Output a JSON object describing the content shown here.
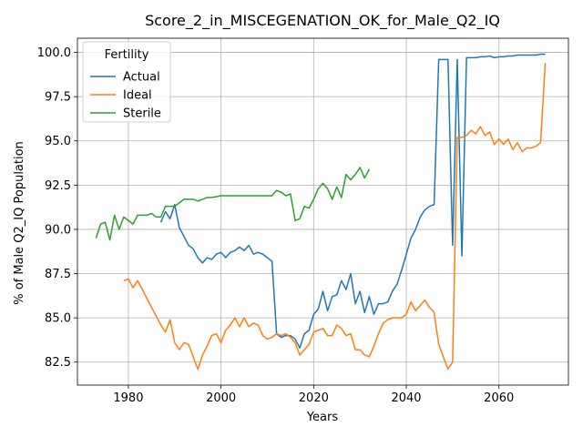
{
  "chart_data": {
    "type": "line",
    "title": "Score_2_in_MISCEGENATION_OK_for_Male_Q2_IQ",
    "xlabel": "Years",
    "ylabel": "% of Male Q2_IQ Population",
    "xlim": [
      1969,
      2075
    ],
    "ylim": [
      81.2,
      100.8
    ],
    "xticks": [
      1980,
      2000,
      2020,
      2040,
      2060
    ],
    "yticks": [
      82.5,
      85.0,
      87.5,
      90.0,
      92.5,
      95.0,
      97.5,
      100.0
    ],
    "xtick_labels": [
      "1980",
      "2000",
      "2020",
      "2040",
      "2060"
    ],
    "ytick_labels": [
      "82.5",
      "85.0",
      "87.5",
      "90.0",
      "92.5",
      "95.0",
      "97.5",
      "100.0"
    ],
    "grid": true,
    "legend": {
      "title": "Fertility",
      "placement": "top-left"
    },
    "series": [
      {
        "name": "Actual",
        "color": "#1f77b4",
        "x": [
          1987,
          1988,
          1989,
          1990,
          1991,
          1992,
          1993,
          1994,
          1995,
          1996,
          1997,
          1998,
          1999,
          2000,
          2001,
          2002,
          2003,
          2004,
          2005,
          2006,
          2007,
          2008,
          2009,
          2010,
          2011,
          2012,
          2013,
          2014,
          2015,
          2016,
          2017,
          2018,
          2019,
          2020,
          2021,
          2022,
          2023,
          2024,
          2025,
          2026,
          2027,
          2028,
          2029,
          2030,
          2031,
          2032,
          2033,
          2034,
          2035,
          2036,
          2037,
          2038,
          2039,
          2040,
          2041,
          2042,
          2043,
          2044,
          2045,
          2046,
          2047,
          2048,
          2049,
          2050,
          2051,
          2052,
          2053,
          2054,
          2055,
          2056,
          2057,
          2058,
          2059,
          2060,
          2061,
          2062,
          2063,
          2064,
          2065,
          2066,
          2067,
          2068,
          2069,
          2070
        ],
        "values": [
          90.4,
          91.0,
          90.6,
          91.4,
          90.1,
          89.6,
          89.1,
          88.9,
          88.4,
          88.1,
          88.4,
          88.3,
          88.6,
          88.7,
          88.4,
          88.7,
          88.8,
          89.0,
          88.8,
          89.1,
          88.6,
          88.7,
          88.6,
          88.4,
          88.2,
          84.1,
          83.9,
          84.0,
          84.0,
          83.8,
          83.3,
          84.1,
          84.3,
          85.2,
          85.5,
          86.5,
          85.4,
          86.2,
          86.3,
          87.1,
          86.6,
          87.5,
          85.8,
          86.5,
          85.3,
          86.2,
          85.2,
          85.8,
          85.8,
          85.9,
          86.5,
          86.9,
          87.7,
          88.6,
          89.5,
          90.0,
          90.7,
          91.1,
          91.3,
          91.4,
          99.6,
          99.6,
          99.6,
          89.1,
          99.6,
          88.5,
          99.7,
          99.7,
          99.7,
          99.75,
          99.75,
          99.8,
          99.7,
          99.75,
          99.75,
          99.8,
          99.8,
          99.85,
          99.85,
          99.85,
          99.85,
          99.85,
          99.9,
          99.9
        ]
      },
      {
        "name": "Ideal",
        "color": "#ff7f0e",
        "x": [
          1979,
          1980,
          1981,
          1982,
          1983,
          1984,
          1985,
          1986,
          1987,
          1988,
          1989,
          1990,
          1991,
          1992,
          1993,
          1994,
          1995,
          1996,
          1997,
          1998,
          1999,
          2000,
          2001,
          2002,
          2003,
          2004,
          2005,
          2006,
          2007,
          2008,
          2009,
          2010,
          2011,
          2012,
          2013,
          2014,
          2015,
          2016,
          2017,
          2018,
          2019,
          2020,
          2021,
          2022,
          2023,
          2024,
          2025,
          2026,
          2027,
          2028,
          2029,
          2030,
          2031,
          2032,
          2033,
          2034,
          2035,
          2036,
          2037,
          2038,
          2039,
          2040,
          2041,
          2042,
          2043,
          2044,
          2045,
          2046,
          2047,
          2048,
          2049,
          2050,
          2051,
          2052,
          2053,
          2054,
          2055,
          2056,
          2057,
          2058,
          2059,
          2060,
          2061,
          2062,
          2063,
          2064,
          2065,
          2066,
          2067,
          2068,
          2069,
          2070
        ],
        "values": [
          87.1,
          87.2,
          86.7,
          87.1,
          86.6,
          86.1,
          85.6,
          85.1,
          84.6,
          84.2,
          84.9,
          83.6,
          83.2,
          83.6,
          83.5,
          82.8,
          82.1,
          82.9,
          83.4,
          84.0,
          84.1,
          83.6,
          84.3,
          84.6,
          85.0,
          84.5,
          85.0,
          84.5,
          84.7,
          84.6,
          84.0,
          83.8,
          83.9,
          84.1,
          84.0,
          84.1,
          83.9,
          83.6,
          82.9,
          83.2,
          83.5,
          84.2,
          84.3,
          84.4,
          84.0,
          84.0,
          84.6,
          84.4,
          84.0,
          84.1,
          83.2,
          83.2,
          82.9,
          82.8,
          83.4,
          84.1,
          84.7,
          84.9,
          85.0,
          85.0,
          85.0,
          85.2,
          85.9,
          85.4,
          85.7,
          86.0,
          85.6,
          85.3,
          83.5,
          82.8,
          82.1,
          82.5,
          95.2,
          95.2,
          95.3,
          95.6,
          95.4,
          95.8,
          95.3,
          95.5,
          94.8,
          95.1,
          94.8,
          95.1,
          94.5,
          94.9,
          94.4,
          94.6,
          94.6,
          94.7,
          94.9,
          99.4
        ]
      },
      {
        "name": "Sterile",
        "color": "#2ca02c",
        "x": [
          1973,
          1974,
          1975,
          1976,
          1977,
          1978,
          1979,
          1980,
          1981,
          1982,
          1983,
          1984,
          1985,
          1986,
          1987,
          1988,
          1989,
          1990,
          1991,
          1992,
          1993,
          1994,
          1995,
          1996,
          1997,
          1998,
          1999,
          2000,
          2001,
          2002,
          2003,
          2004,
          2005,
          2006,
          2007,
          2008,
          2009,
          2010,
          2011,
          2012,
          2013,
          2014,
          2015,
          2016,
          2017,
          2018,
          2019,
          2020,
          2021,
          2022,
          2023,
          2024,
          2025,
          2026,
          2027,
          2028,
          2029,
          2030,
          2031,
          2032
        ],
        "values": [
          89.5,
          90.3,
          90.4,
          89.4,
          90.8,
          90.0,
          90.7,
          90.5,
          90.3,
          90.8,
          90.8,
          90.8,
          90.9,
          90.7,
          90.7,
          91.3,
          91.3,
          91.3,
          91.5,
          91.7,
          91.7,
          91.7,
          91.6,
          91.7,
          91.8,
          91.8,
          91.85,
          91.9,
          91.9,
          91.9,
          91.9,
          91.9,
          91.9,
          91.9,
          91.9,
          91.9,
          91.9,
          91.9,
          91.9,
          92.2,
          92.1,
          91.9,
          92.0,
          90.5,
          90.6,
          91.3,
          91.2,
          91.7,
          92.3,
          92.6,
          92.3,
          91.7,
          92.4,
          91.8,
          93.1,
          92.8,
          93.1,
          93.5,
          92.9,
          93.4
        ]
      }
    ]
  }
}
